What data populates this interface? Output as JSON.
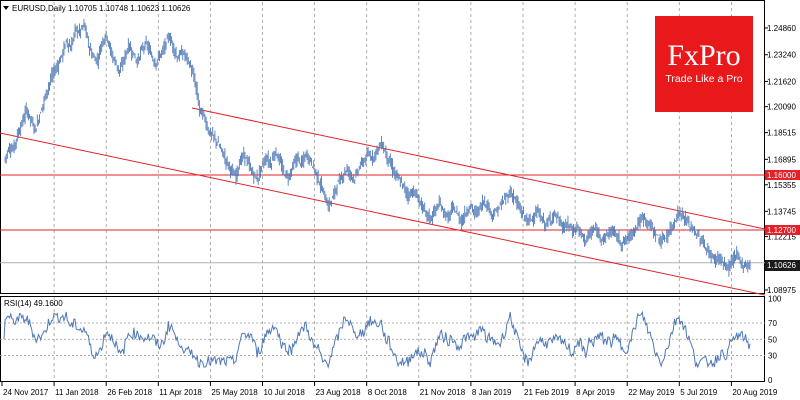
{
  "header": {
    "menu_icon": "triangle-down-icon",
    "symbol_text": "EURUSD,Daily  1.10705 1.10748 1.10623 1.10626"
  },
  "logo": {
    "brand": "FxPro",
    "tagline": "Trade Like a Pro",
    "color": "#e8181b"
  },
  "rsi": {
    "label": "RSI(14) 49.1600",
    "levels": [
      "100",
      "70",
      "50",
      "30",
      "0"
    ]
  },
  "colors": {
    "candle": "#4f79b7",
    "channel": "#e22228",
    "level_line": "#e22228",
    "current_price_bg": "#1b1b1b",
    "rsi_line": "#4f79b7",
    "grid": "#9a9a9a"
  },
  "chart_data": {
    "type": "candlestick",
    "symbol": "EURUSD",
    "timeframe": "Daily",
    "ohlc_last": {
      "open": 1.10705,
      "high": 1.10748,
      "low": 1.10623,
      "close": 1.10626
    },
    "price_axis_ticks": [
      "1.24860",
      "1.23240",
      "1.21620",
      "1.20090",
      "1.18515",
      "1.16895",
      "1.15355",
      "1.13745",
      "1.12215",
      "1.10626",
      "1.08975"
    ],
    "time_axis_ticks": [
      "24 Nov 2017",
      "11 Jan 2018",
      "26 Feb 2018",
      "11 Apr 2018",
      "25 May 2018",
      "10 Jul 2018",
      "23 Aug 2018",
      "8 Oct 2018",
      "21 Nov 2018",
      "8 Jan 2019",
      "21 Feb 2019",
      "8 Apr 2019",
      "22 May 2019",
      "5 Jul 2019",
      "20 Aug 2019"
    ],
    "horizontal_levels": [
      "1.16000",
      "1.12700"
    ],
    "current_price": "1.10626",
    "closes": [
      1.168,
      1.176,
      1.175,
      1.184,
      1.191,
      1.199,
      1.193,
      1.187,
      1.196,
      1.205,
      1.214,
      1.221,
      1.226,
      1.232,
      1.241,
      1.236,
      1.248,
      1.246,
      1.251,
      1.238,
      1.231,
      1.229,
      1.24,
      1.245,
      1.234,
      1.228,
      1.222,
      1.23,
      1.238,
      1.233,
      1.228,
      1.236,
      1.239,
      1.233,
      1.227,
      1.232,
      1.236,
      1.244,
      1.238,
      1.23,
      1.234,
      1.231,
      1.225,
      1.215,
      1.199,
      1.195,
      1.186,
      1.183,
      1.179,
      1.174,
      1.168,
      1.163,
      1.158,
      1.167,
      1.172,
      1.166,
      1.16,
      1.157,
      1.165,
      1.17,
      1.166,
      1.174,
      1.168,
      1.161,
      1.158,
      1.165,
      1.17,
      1.166,
      1.172,
      1.168,
      1.162,
      1.155,
      1.148,
      1.14,
      1.146,
      1.154,
      1.158,
      1.163,
      1.16,
      1.157,
      1.165,
      1.168,
      1.172,
      1.17,
      1.175,
      1.179,
      1.172,
      1.166,
      1.16,
      1.156,
      1.152,
      1.147,
      1.15,
      1.146,
      1.141,
      1.136,
      1.133,
      1.138,
      1.142,
      1.137,
      1.133,
      1.14,
      1.136,
      1.131,
      1.137,
      1.141,
      1.136,
      1.139,
      1.144,
      1.14,
      1.135,
      1.138,
      1.142,
      1.146,
      1.149,
      1.145,
      1.139,
      1.135,
      1.131,
      1.134,
      1.137,
      1.133,
      1.129,
      1.133,
      1.136,
      1.131,
      1.127,
      1.13,
      1.125,
      1.128,
      1.123,
      1.12,
      1.124,
      1.127,
      1.123,
      1.121,
      1.124,
      1.126,
      1.122,
      1.118,
      1.12,
      1.123,
      1.127,
      1.131,
      1.134,
      1.13,
      1.127,
      1.122,
      1.119,
      1.122,
      1.126,
      1.132,
      1.137,
      1.134,
      1.13,
      1.127,
      1.123,
      1.12,
      1.115,
      1.111,
      1.108,
      1.11,
      1.105,
      1.103,
      1.108,
      1.111,
      1.106,
      1.104,
      1.106
    ]
  }
}
